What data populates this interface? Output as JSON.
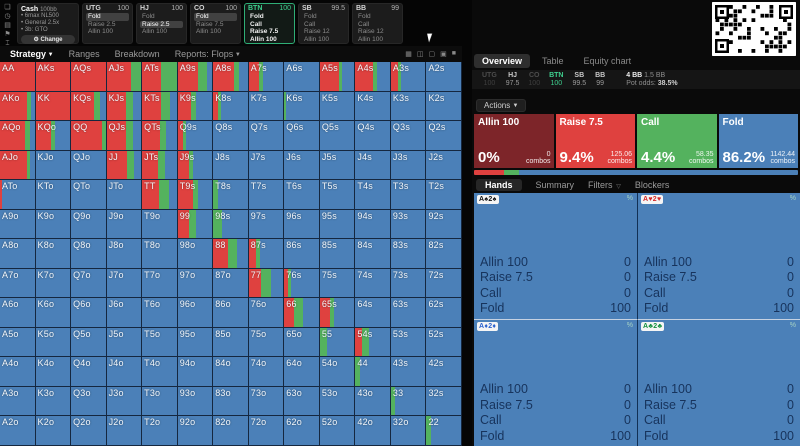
{
  "colors": {
    "raise": "#df413f",
    "call": "#54b25e",
    "fold": "#4b80b8",
    "allin": "#7d2529",
    "accent_green": "#3ecf8e"
  },
  "sidebar": {
    "icons": [
      {
        "name": "bookmark-icon",
        "glyph": "❏"
      },
      {
        "name": "history-icon",
        "glyph": "◷"
      },
      {
        "name": "save-icon",
        "glyph": "▤"
      },
      {
        "name": "flag-icon",
        "glyph": "⚑"
      },
      {
        "name": "tool-icon",
        "glyph": "⌶"
      }
    ]
  },
  "game_panel": {
    "type": "Cash",
    "stakes": "100bb",
    "settings": [
      "6max NL500",
      "General 2.5x",
      "3b: GTO"
    ],
    "gear_glyph": "⚙",
    "change_button": "Change"
  },
  "position_panels": [
    {
      "name": "UTG",
      "stack": "100",
      "active": false,
      "bright": false,
      "actions": [
        {
          "label": "Fold",
          "chosen": true
        },
        {
          "label": "Raise 2.5",
          "chosen": false
        },
        {
          "label": "Allin 100",
          "chosen": false
        }
      ]
    },
    {
      "name": "HJ",
      "stack": "100",
      "active": false,
      "bright": false,
      "actions": [
        {
          "label": "Fold",
          "chosen": false
        },
        {
          "label": "Raise 2.5",
          "chosen": true
        },
        {
          "label": "Allin 100",
          "chosen": false
        }
      ]
    },
    {
      "name": "CO",
      "stack": "100",
      "active": false,
      "bright": false,
      "actions": [
        {
          "label": "Fold",
          "chosen": true
        },
        {
          "label": "Raise 7.5",
          "chosen": false
        },
        {
          "label": "Allin 100",
          "chosen": false
        }
      ]
    },
    {
      "name": "BTN",
      "stack": "100",
      "active": true,
      "bright": true,
      "actions": [
        {
          "label": "Fold",
          "chosen": false
        },
        {
          "label": "Call",
          "chosen": false
        },
        {
          "label": "Raise 7.5",
          "chosen": false
        },
        {
          "label": "Allin 100",
          "chosen": false
        }
      ]
    },
    {
      "name": "SB",
      "stack": "99.5",
      "active": false,
      "bright": false,
      "actions": [
        {
          "label": "Fold",
          "chosen": false
        },
        {
          "label": "Call",
          "chosen": false
        },
        {
          "label": "Raise 12",
          "chosen": false
        },
        {
          "label": "Allin 100",
          "chosen": false
        }
      ]
    },
    {
      "name": "BB",
      "stack": "99",
      "active": false,
      "bright": false,
      "actions": [
        {
          "label": "Fold",
          "chosen": false
        },
        {
          "label": "Call",
          "chosen": false
        },
        {
          "label": "Raise 12",
          "chosen": false
        },
        {
          "label": "Allin 100",
          "chosen": false
        }
      ]
    }
  ],
  "toolbar": {
    "menu": [
      {
        "label": "Strategy",
        "active": true,
        "caret": true
      },
      {
        "label": "Ranges",
        "active": false,
        "caret": false
      },
      {
        "label": "Breakdown",
        "active": false,
        "caret": false
      },
      {
        "label": "Reports: Flops",
        "active": false,
        "caret": true
      }
    ],
    "icons": [
      "▦",
      "◫",
      "▢",
      "▣",
      "■"
    ]
  },
  "grid": {
    "cells": [
      [
        "AA",
        100,
        0
      ],
      [
        "AKs",
        100,
        0
      ],
      [
        "AQs",
        100,
        0
      ],
      [
        "AJs",
        72,
        28
      ],
      [
        "ATs",
        55,
        45
      ],
      [
        "A9s",
        60,
        25
      ],
      [
        "A8s",
        60,
        15
      ],
      [
        "A7s",
        30,
        10
      ],
      [
        "A6s",
        0,
        0
      ],
      [
        "A5s",
        55,
        8
      ],
      [
        "A4s",
        50,
        12
      ],
      [
        "A3s",
        20,
        8
      ],
      [
        "A2s",
        0,
        0
      ],
      [
        "AKo",
        78,
        12
      ],
      [
        "KK",
        100,
        0
      ],
      [
        "KQs",
        65,
        20
      ],
      [
        "KJs",
        55,
        22
      ],
      [
        "KTs",
        55,
        25
      ],
      [
        "K9s",
        38,
        15
      ],
      [
        "K8s",
        15,
        8
      ],
      [
        "K7s",
        0,
        0
      ],
      [
        "K6s",
        0,
        5
      ],
      [
        "K5s",
        0,
        0
      ],
      [
        "K4s",
        0,
        0
      ],
      [
        "K3s",
        0,
        0
      ],
      [
        "K2s",
        0,
        0
      ],
      [
        "AQo",
        72,
        14
      ],
      [
        "KQo",
        45,
        10
      ],
      [
        "QQ",
        90,
        10
      ],
      [
        "QJs",
        55,
        20
      ],
      [
        "QTs",
        52,
        18
      ],
      [
        "Q9s",
        16,
        8
      ],
      [
        "Q8s",
        0,
        0
      ],
      [
        "Q7s",
        0,
        0
      ],
      [
        "Q6s",
        0,
        0
      ],
      [
        "Q5s",
        0,
        0
      ],
      [
        "Q4s",
        0,
        0
      ],
      [
        "Q3s",
        0,
        0
      ],
      [
        "Q2s",
        0,
        0
      ],
      [
        "AJo",
        78,
        10
      ],
      [
        "KJo",
        0,
        0
      ],
      [
        "QJo",
        0,
        0
      ],
      [
        "JJ",
        60,
        18
      ],
      [
        "JTs",
        45,
        22
      ],
      [
        "J9s",
        32,
        12
      ],
      [
        "J8s",
        0,
        0
      ],
      [
        "J7s",
        0,
        0
      ],
      [
        "J6s",
        0,
        0
      ],
      [
        "J5s",
        0,
        0
      ],
      [
        "J4s",
        0,
        0
      ],
      [
        "J3s",
        0,
        0
      ],
      [
        "J2s",
        0,
        0
      ],
      [
        "ATo",
        6,
        0
      ],
      [
        "KTo",
        0,
        0
      ],
      [
        "QTo",
        0,
        0
      ],
      [
        "JTo",
        0,
        0
      ],
      [
        "TT",
        50,
        28
      ],
      [
        "T9s",
        45,
        15
      ],
      [
        "T8s",
        0,
        15
      ],
      [
        "T7s",
        0,
        0
      ],
      [
        "T6s",
        0,
        0
      ],
      [
        "T5s",
        0,
        0
      ],
      [
        "T4s",
        0,
        0
      ],
      [
        "T3s",
        0,
        0
      ],
      [
        "T2s",
        0,
        0
      ],
      [
        "A9o",
        0,
        0
      ],
      [
        "K9o",
        0,
        0
      ],
      [
        "Q9o",
        0,
        0
      ],
      [
        "J9o",
        0,
        0
      ],
      [
        "T9o",
        0,
        0
      ],
      [
        "99",
        32,
        22
      ],
      [
        "98s",
        0,
        25
      ],
      [
        "97s",
        0,
        0
      ],
      [
        "96s",
        0,
        0
      ],
      [
        "95s",
        0,
        0
      ],
      [
        "94s",
        0,
        0
      ],
      [
        "93s",
        0,
        0
      ],
      [
        "92s",
        0,
        0
      ],
      [
        "A8o",
        0,
        0
      ],
      [
        "K8o",
        0,
        0
      ],
      [
        "Q8o",
        0,
        0
      ],
      [
        "J8o",
        0,
        0
      ],
      [
        "T8o",
        0,
        0
      ],
      [
        "98o",
        0,
        0
      ],
      [
        "88",
        42,
        28
      ],
      [
        "87s",
        20,
        12
      ],
      [
        "86s",
        0,
        0
      ],
      [
        "85s",
        0,
        0
      ],
      [
        "84s",
        0,
        0
      ],
      [
        "83s",
        0,
        0
      ],
      [
        "82s",
        0,
        0
      ],
      [
        "A7o",
        0,
        0
      ],
      [
        "K7o",
        0,
        0
      ],
      [
        "Q7o",
        0,
        0
      ],
      [
        "J7o",
        0,
        0
      ],
      [
        "T7o",
        0,
        0
      ],
      [
        "97o",
        0,
        0
      ],
      [
        "87o",
        0,
        0
      ],
      [
        "77",
        35,
        30
      ],
      [
        "76s",
        10,
        10
      ],
      [
        "75s",
        0,
        0
      ],
      [
        "74s",
        0,
        0
      ],
      [
        "73s",
        0,
        0
      ],
      [
        "72s",
        0,
        0
      ],
      [
        "A6o",
        0,
        0
      ],
      [
        "K6o",
        0,
        0
      ],
      [
        "Q6o",
        0,
        0
      ],
      [
        "J6o",
        0,
        0
      ],
      [
        "T6o",
        0,
        0
      ],
      [
        "96o",
        0,
        0
      ],
      [
        "86o",
        0,
        0
      ],
      [
        "76o",
        0,
        0
      ],
      [
        "66",
        28,
        25
      ],
      [
        "65s",
        28,
        12
      ],
      [
        "64s",
        0,
        0
      ],
      [
        "63s",
        0,
        0
      ],
      [
        "62s",
        0,
        0
      ],
      [
        "A5o",
        0,
        0
      ],
      [
        "K5o",
        0,
        0
      ],
      [
        "Q5o",
        0,
        0
      ],
      [
        "J5o",
        0,
        0
      ],
      [
        "T5o",
        0,
        0
      ],
      [
        "95o",
        0,
        0
      ],
      [
        "85o",
        0,
        0
      ],
      [
        "75o",
        0,
        0
      ],
      [
        "65o",
        0,
        0
      ],
      [
        "55",
        0,
        20
      ],
      [
        "54s",
        20,
        20
      ],
      [
        "53s",
        0,
        0
      ],
      [
        "52s",
        0,
        0
      ],
      [
        "A4o",
        0,
        0
      ],
      [
        "K4o",
        0,
        0
      ],
      [
        "Q4o",
        0,
        0
      ],
      [
        "J4o",
        0,
        0
      ],
      [
        "T4o",
        0,
        0
      ],
      [
        "94o",
        0,
        0
      ],
      [
        "84o",
        0,
        0
      ],
      [
        "74o",
        0,
        0
      ],
      [
        "64o",
        0,
        0
      ],
      [
        "54o",
        0,
        0
      ],
      [
        "44",
        0,
        14
      ],
      [
        "43s",
        0,
        0
      ],
      [
        "42s",
        0,
        0
      ],
      [
        "A3o",
        0,
        0
      ],
      [
        "K3o",
        0,
        0
      ],
      [
        "Q3o",
        0,
        0
      ],
      [
        "J3o",
        0,
        0
      ],
      [
        "T3o",
        0,
        0
      ],
      [
        "93o",
        0,
        0
      ],
      [
        "83o",
        0,
        0
      ],
      [
        "73o",
        0,
        0
      ],
      [
        "63o",
        0,
        0
      ],
      [
        "53o",
        0,
        0
      ],
      [
        "43o",
        0,
        0
      ],
      [
        "33",
        0,
        13
      ],
      [
        "32s",
        0,
        0
      ],
      [
        "A2o",
        0,
        0
      ],
      [
        "K2o",
        0,
        0
      ],
      [
        "Q2o",
        0,
        0
      ],
      [
        "J2o",
        0,
        0
      ],
      [
        "T2o",
        0,
        0
      ],
      [
        "92o",
        0,
        0
      ],
      [
        "82o",
        0,
        0
      ],
      [
        "72o",
        0,
        0
      ],
      [
        "62o",
        0,
        0
      ],
      [
        "52o",
        0,
        0
      ],
      [
        "42o",
        0,
        0
      ],
      [
        "32o",
        0,
        0
      ],
      [
        "22",
        0,
        13
      ]
    ]
  },
  "overview": {
    "tabs": [
      {
        "label": "Overview",
        "active": true
      },
      {
        "label": "Table",
        "active": false
      },
      {
        "label": "Equity chart",
        "active": false
      }
    ],
    "strip_positions": [
      {
        "name": "UTG",
        "stack": "100",
        "folded": true,
        "active": false
      },
      {
        "name": "HJ",
        "stack": "97.5",
        "folded": false,
        "active": false
      },
      {
        "name": "CO",
        "stack": "100",
        "folded": true,
        "active": false
      },
      {
        "name": "BTN",
        "stack": "100",
        "folded": false,
        "active": true
      },
      {
        "name": "SB",
        "stack": "99.5",
        "folded": false,
        "active": false
      },
      {
        "name": "BB",
        "stack": "99",
        "folded": false,
        "active": false
      }
    ],
    "pot": "4 BB",
    "to_call": "1.5 BB",
    "pot_odds_label": "Pot odds:",
    "pot_odds": "38.5%",
    "actions_button": "Actions",
    "combos_word": "combos",
    "action_cards": [
      {
        "label": "Allin 100",
        "pct": "0%",
        "combos": "0",
        "colorKey": "allin",
        "freq": 0
      },
      {
        "label": "Raise 7.5",
        "pct": "9.4%",
        "combos": "125.06",
        "colorKey": "raise",
        "freq": 9.4
      },
      {
        "label": "Call",
        "pct": "4.4%",
        "combos": "58.35",
        "colorKey": "call",
        "freq": 4.4
      },
      {
        "label": "Fold",
        "pct": "86.2%",
        "combos": "1142.44",
        "colorKey": "fold",
        "freq": 86.2
      }
    ]
  },
  "hands": {
    "tabs": [
      {
        "label": "Hands",
        "active": true,
        "icon": ""
      },
      {
        "label": "Summary",
        "active": false,
        "icon": ""
      },
      {
        "label": "Filters",
        "active": false,
        "icon": "▽"
      },
      {
        "label": "Blockers",
        "active": false,
        "icon": ""
      }
    ],
    "percent_icon": "%",
    "tiles": [
      {
        "badge": "A♠2♠",
        "suit": "spades",
        "badge_color": "#111111",
        "rows": [
          [
            "Allin 100",
            "0"
          ],
          [
            "Raise 7.5",
            "0"
          ],
          [
            "Call",
            "0"
          ],
          [
            "Fold",
            "100"
          ]
        ]
      },
      {
        "badge": "A♥2♥",
        "suit": "hearts",
        "badge_color": "#d42a2a",
        "rows": [
          [
            "Allin 100",
            "0"
          ],
          [
            "Raise 7.5",
            "0"
          ],
          [
            "Call",
            "0"
          ],
          [
            "Fold",
            "100"
          ]
        ]
      },
      {
        "badge": "A♦2♦",
        "suit": "diamonds",
        "badge_color": "#2b63cf",
        "rows": [
          [
            "Allin 100",
            "0"
          ],
          [
            "Raise 7.5",
            "0"
          ],
          [
            "Call",
            "0"
          ],
          [
            "Fold",
            "100"
          ]
        ]
      },
      {
        "badge": "A♣2♣",
        "suit": "clubs",
        "badge_color": "#13913f",
        "rows": [
          [
            "Allin 100",
            "0"
          ],
          [
            "Raise 7.5",
            "0"
          ],
          [
            "Call",
            "0"
          ],
          [
            "Fold",
            "100"
          ]
        ]
      }
    ]
  }
}
